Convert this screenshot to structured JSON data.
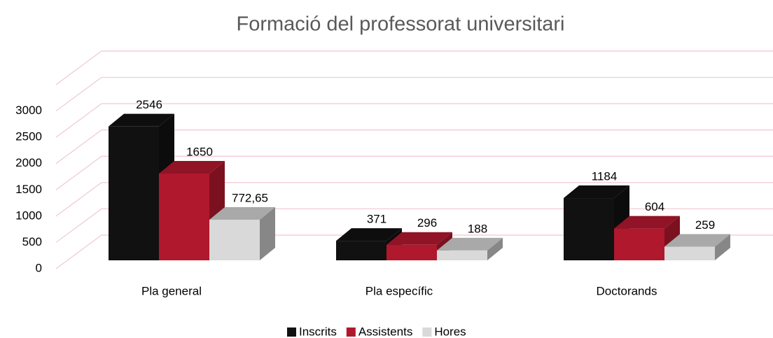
{
  "chart_data": {
    "type": "bar3d",
    "title": "Formació del professorat universitari",
    "categories": [
      "Pla general",
      "Pla específic",
      "Doctorands"
    ],
    "series": [
      {
        "name": "Inscrits",
        "color": "#111111",
        "values": [
          2546,
          371,
          1184
        ]
      },
      {
        "name": "Assistents",
        "color": "#b0182d",
        "values": [
          1650,
          296,
          604
        ]
      },
      {
        "name": "Hores",
        "color": "#d9d9d9",
        "values": [
          772.65,
          188,
          259
        ],
        "value_labels": [
          "772,65",
          "188",
          "259"
        ]
      }
    ],
    "ylim": [
      0,
      3500
    ],
    "yticks": [
      0,
      500,
      1000,
      1500,
      2000,
      2500,
      3000
    ],
    "grid": true,
    "legend": "bottom"
  }
}
